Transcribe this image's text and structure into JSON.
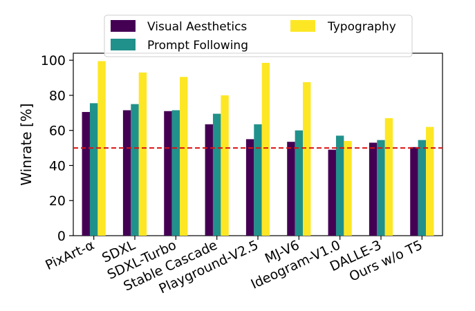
{
  "chart_data": {
    "type": "bar",
    "title": "",
    "xlabel": "",
    "ylabel": "Winrate [%]",
    "ylim": [
      0,
      104
    ],
    "yticks": [
      0,
      20,
      40,
      60,
      80,
      100
    ],
    "categories": [
      "PixArt-α",
      "SDXL",
      "SDXL-Turbo",
      "Stable Cascade",
      "Playground-V2.5",
      "MJ-V6",
      "Ideogram-V1.0",
      "DALLE-3",
      "Ours w/o T5"
    ],
    "series": [
      {
        "name": "Visual Aesthetics",
        "color": "#440154",
        "values": [
          70.5,
          71.5,
          71.0,
          63.5,
          55.0,
          53.5,
          49.0,
          53.0,
          50.5
        ]
      },
      {
        "name": "Prompt Following",
        "color": "#21918c",
        "values": [
          75.5,
          75.0,
          71.5,
          69.5,
          63.5,
          60.0,
          57.0,
          54.5,
          54.5
        ]
      },
      {
        "name": "Typography",
        "color": "#fde725",
        "values": [
          99.5,
          93.0,
          90.5,
          80.0,
          98.5,
          87.5,
          54.0,
          67.0,
          62.0
        ]
      }
    ],
    "reference_line": {
      "value": 50,
      "color": "#dd1111",
      "style": "dashed"
    },
    "legend": {
      "placement": "top-center",
      "columns": 2
    }
  }
}
